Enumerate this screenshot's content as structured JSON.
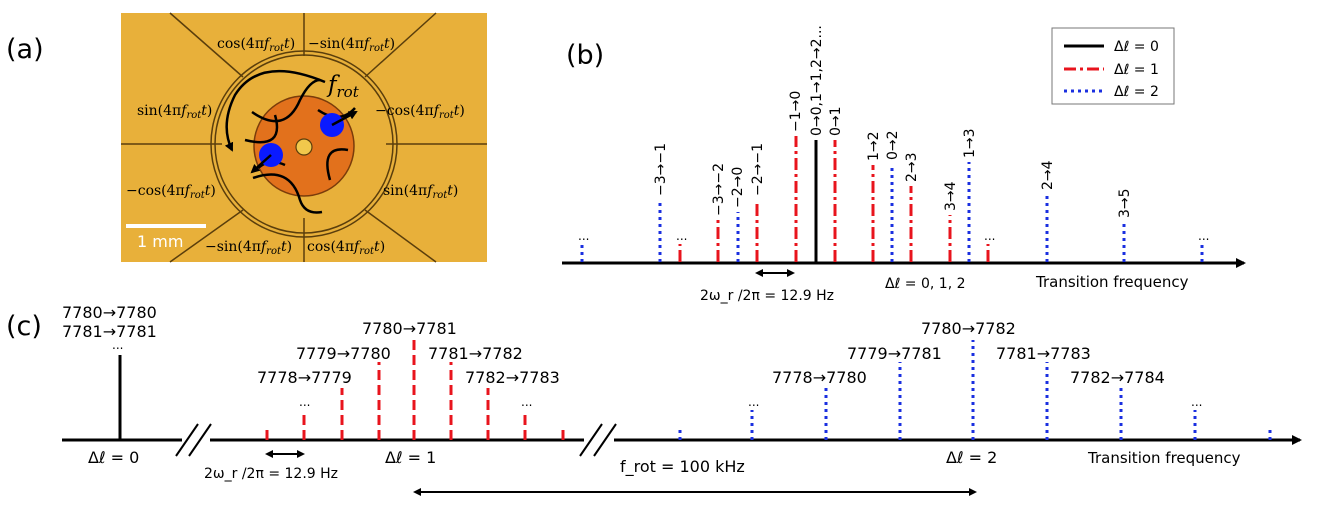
{
  "panel_labels": {
    "a": "(a)",
    "b": "(b)",
    "c": "(c)"
  },
  "panel_a": {
    "electrode_labels": [
      "cos(4πf_rot t)",
      "−sin(4πf_rot t)",
      "sin(4πf_rot t)",
      "−cos(4πf_rot t)",
      "−cos(4πf_rot t)",
      "sin(4πf_rot t)",
      "−sin(4πf_rot t)",
      "cos(4πf_rot t)"
    ],
    "rotation_label": "f_rot",
    "scale_bar_label": "1 mm",
    "colors": {
      "substrate": "#e8b03a",
      "trap_disk": "#e2711c",
      "ion": "#0a1aff"
    }
  },
  "panel_b": {
    "legend": [
      {
        "label": "Δℓ = 0",
        "style": "solid",
        "color": "#000000"
      },
      {
        "label": "Δℓ = 1",
        "style": "dashdot",
        "color": "#e8141d"
      },
      {
        "label": "Δℓ = 2",
        "style": "dotted",
        "color": "#1a2fe0"
      }
    ],
    "axis_label": "Transition frequency",
    "spacing_label": "2ω_r /2π = 12.9 Hz",
    "group_label": "Δℓ = 0, 1, 2",
    "line_labels": [
      "−3→−1",
      "−3→−2",
      "−2→0",
      "−2→−1",
      "−1→0",
      "0→0,1→1,2→2...",
      "0→1",
      "1→2",
      "0→2",
      "2→3",
      "3→4",
      "1→3",
      "2→4",
      "3→5"
    ],
    "ellipsis": "..."
  },
  "panel_c": {
    "axis_label": "Transition frequency",
    "delta_labels": [
      "Δℓ = 0",
      "Δℓ = 1",
      "Δℓ = 2"
    ],
    "spacing_label": "2ω_r /2π = 12.9 Hz",
    "frot_label": "f_rot = 100 kHz",
    "delta0_labels": [
      "7780→7780",
      "7781→7781"
    ],
    "delta1_labels": [
      "7780→7781",
      "7779→7780",
      "7781→7782",
      "7778→7779",
      "7782→7783"
    ],
    "delta2_labels": [
      "7780→7782",
      "7779→7781",
      "7781→7783",
      "7778→7780",
      "7782→7784"
    ],
    "ellipsis": "..."
  }
}
